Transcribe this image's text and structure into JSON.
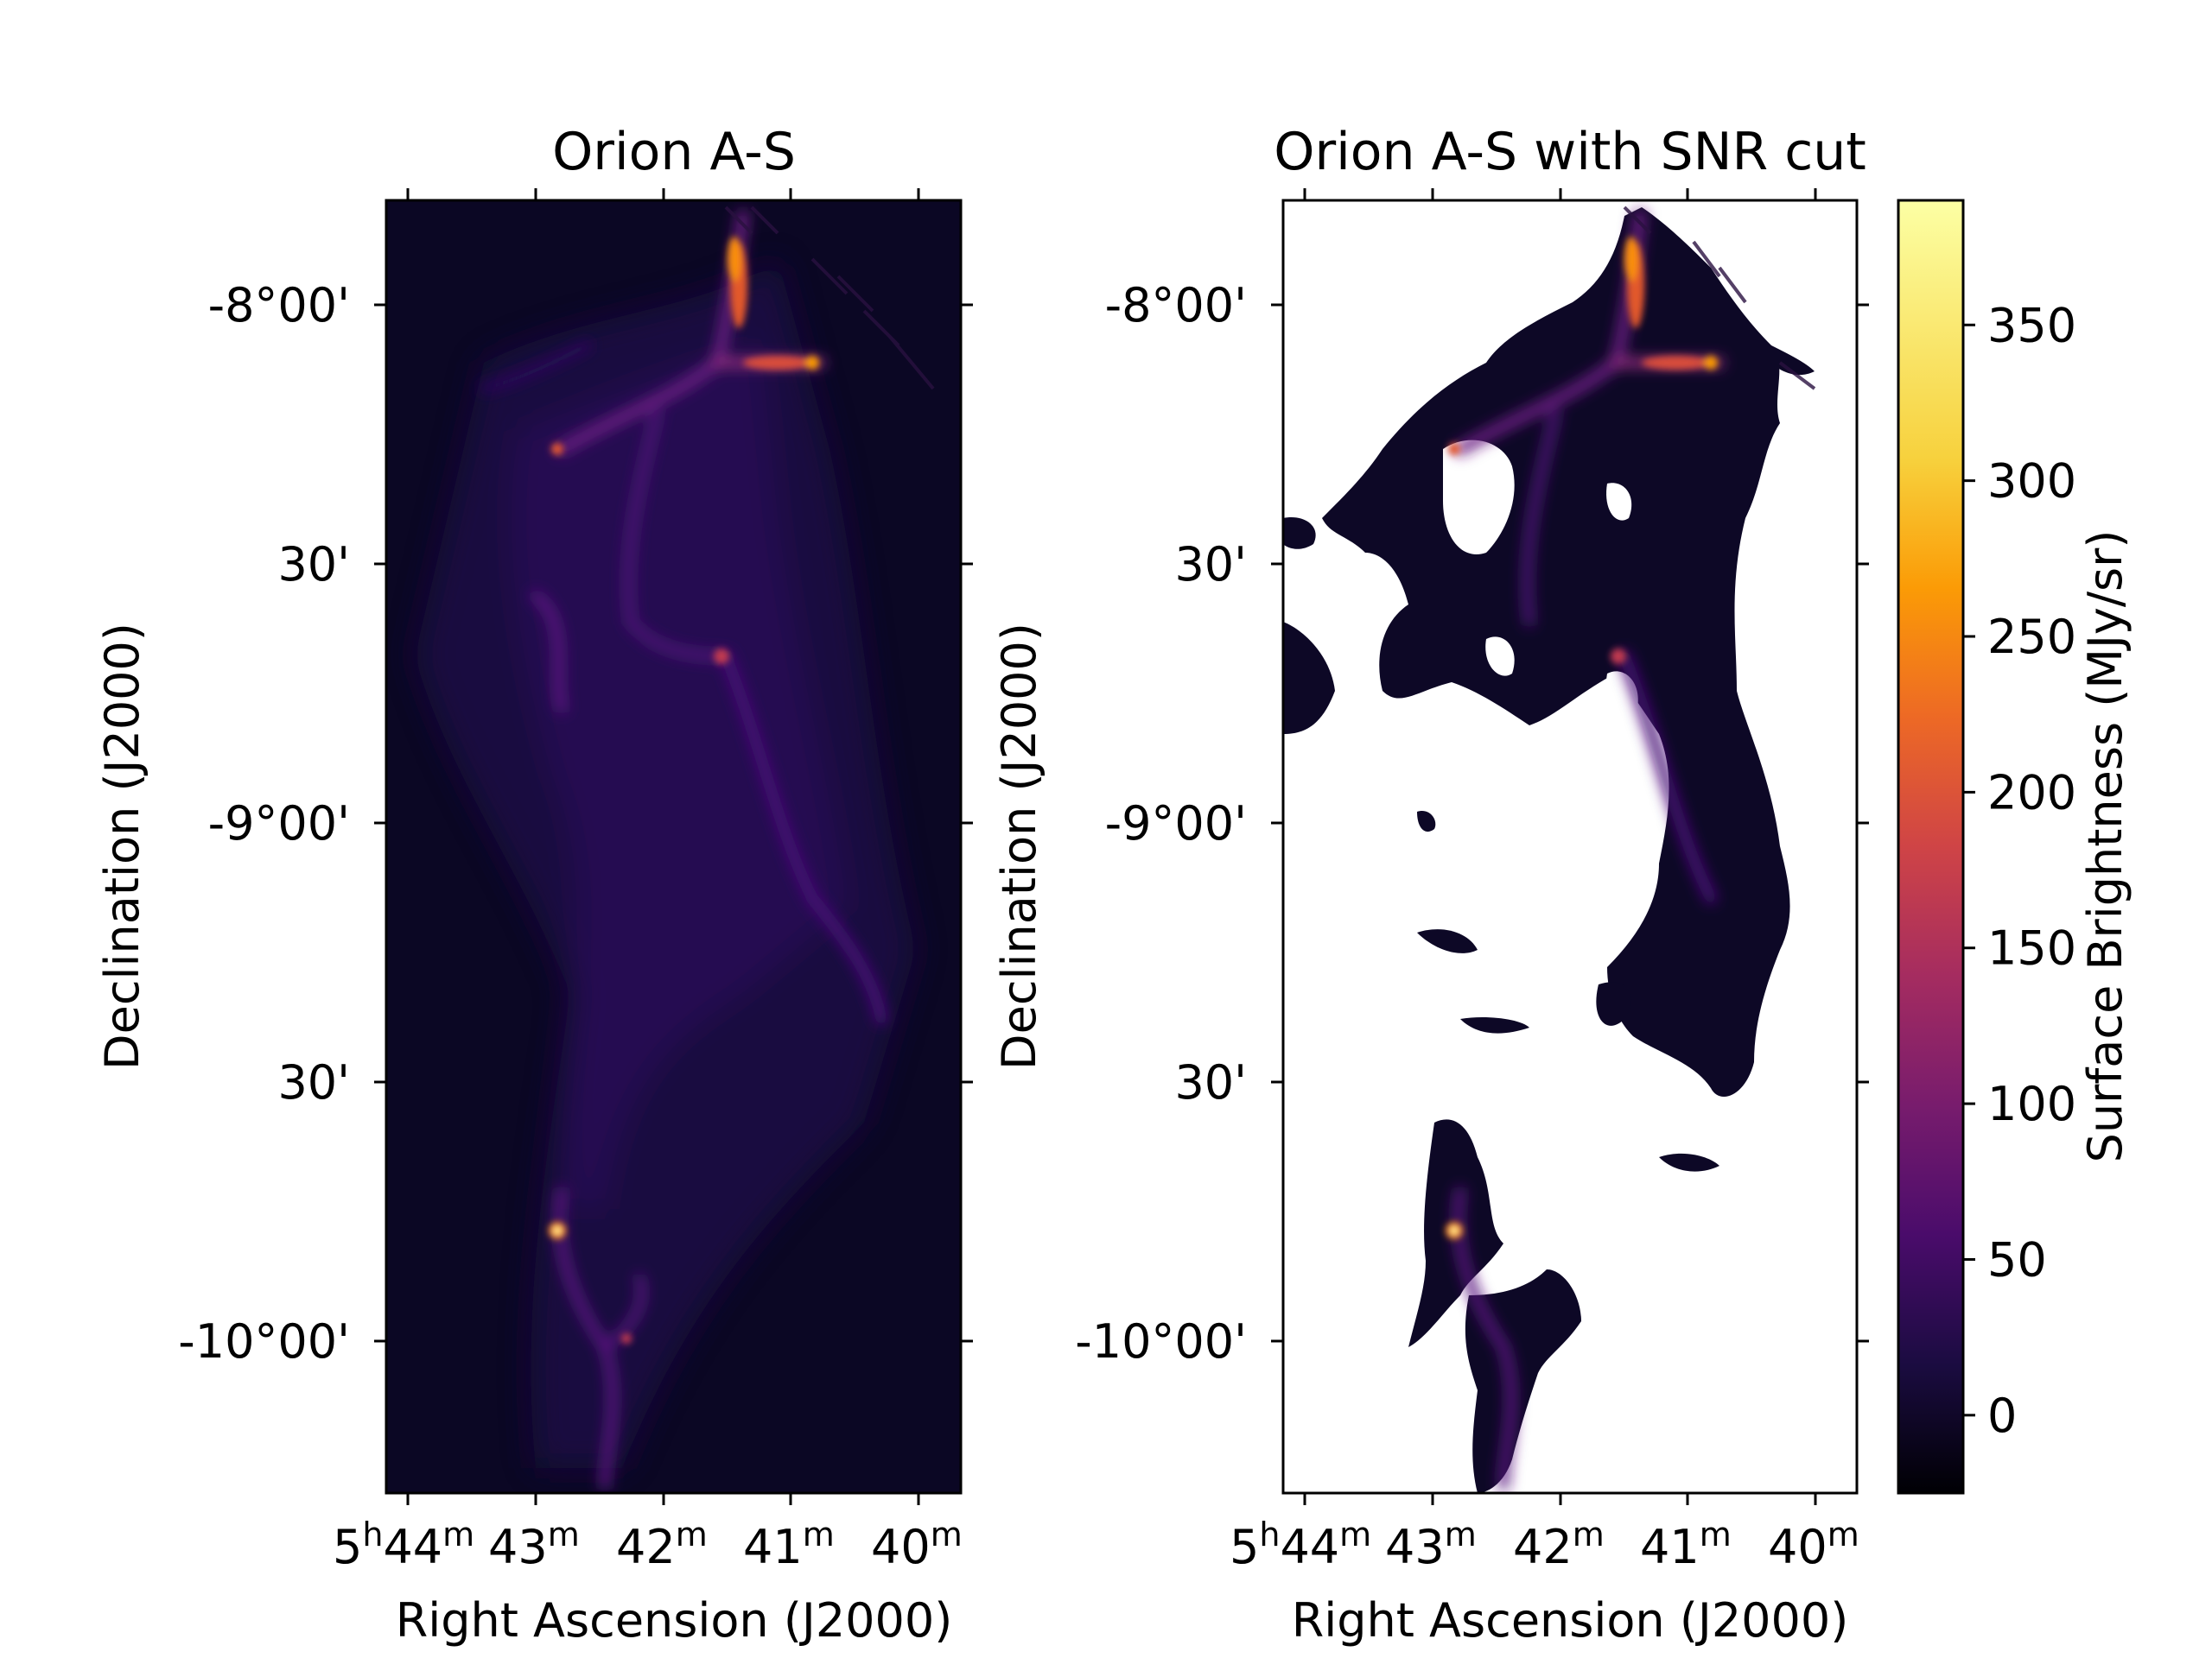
{
  "chart_data": [
    {
      "type": "heatmap",
      "title": "Orion A-S",
      "xlabel": "Right Ascension (J2000)",
      "ylabel": "Declination (J2000)",
      "xticks": [
        {
          "h": "5",
          "m": "44",
          "label_main": "5",
          "sup1": "h",
          "mid": "44",
          "sup2": "m"
        },
        {
          "label_main": "43",
          "sup": "m"
        },
        {
          "label_main": "42",
          "sup": "m"
        },
        {
          "label_main": "41",
          "sup": "m"
        },
        {
          "label_main": "40",
          "sup": "m"
        }
      ],
      "yticks": [
        "-8°00'",
        "30'",
        "-9°00'",
        "30'",
        "-10°00'"
      ],
      "colormap": "inferno",
      "grid": false
    },
    {
      "type": "heatmap",
      "title": "Orion A-S with SNR cut",
      "xlabel": "Right Ascension (J2000)",
      "ylabel": "Declination (J2000)",
      "yticks": [
        "-8°00'",
        "30'",
        "-9°00'",
        "30'",
        "-10°00'"
      ],
      "colormap": "inferno",
      "masked_color": "#ffffff",
      "grid": false
    }
  ],
  "colorbar": {
    "label": "Surface Brightness (MJy/sr)",
    "ticks": [
      "0",
      "50",
      "100",
      "150",
      "200",
      "250",
      "300",
      "350"
    ],
    "range": [
      -25,
      390
    ]
  },
  "xtick_text": {
    "first_h": "5",
    "first_h_sup": "h",
    "first_m": "44",
    "first_m_sup": "m",
    "t43": "43",
    "t42": "42",
    "t41": "41",
    "t40": "40",
    "m_sup": "m"
  },
  "colors": {
    "background_dark": "#07051a",
    "filament": "#3b0f70",
    "bright": "#f98e09",
    "peak": "#fcffa4"
  }
}
